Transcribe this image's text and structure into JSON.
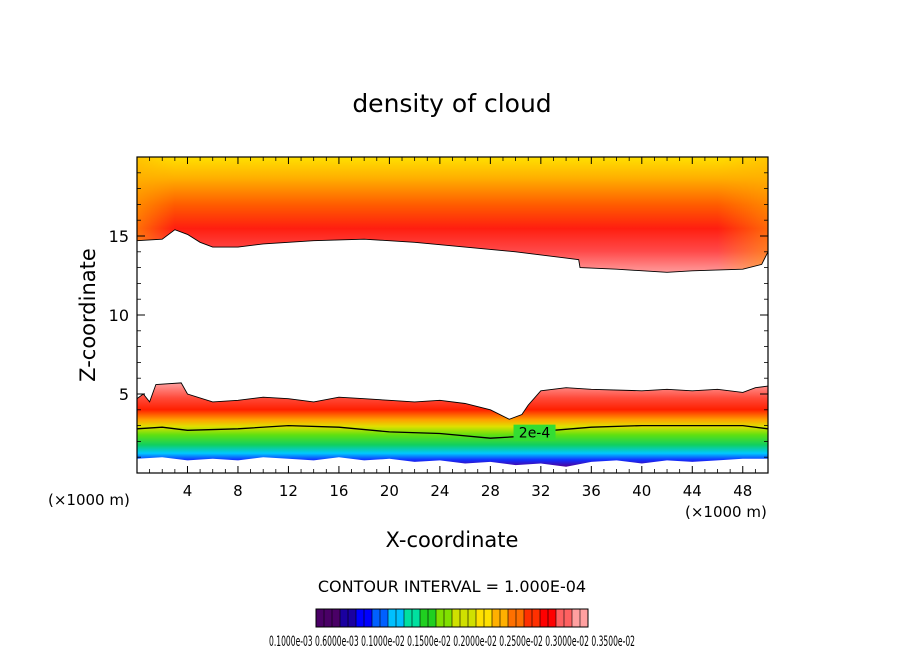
{
  "chart_data": {
    "type": "heatmap",
    "title": "density of cloud",
    "xlabel": "X-coordinate",
    "ylabel": "Z-coordinate",
    "x_unit": "(×1000 m)",
    "x_unit_right": "(×1000 m)",
    "xlim": [
      0,
      50
    ],
    "ylim": [
      0,
      20
    ],
    "x_ticks": [
      4,
      8,
      12,
      16,
      20,
      24,
      28,
      32,
      36,
      40,
      44,
      48
    ],
    "x_tick_labels": [
      "4",
      "8",
      "12",
      "16",
      "20",
      "24",
      "28",
      "32",
      "36",
      "40",
      "44",
      "48"
    ],
    "y_ticks": [
      5,
      10,
      15
    ],
    "y_tick_labels": [
      "5",
      "10",
      "15"
    ],
    "contour_interval_text": "CONTOUR INTERVAL = 1.000E-04",
    "contour_label": "2e-4",
    "contour_label_at": {
      "x": 31.5,
      "z": 2.3
    },
    "colorbar": {
      "min": 0.0001,
      "max": 0.0035,
      "labels_text": "0.1000e-03   0.6000e-03   0.1000e-02   0.1500e-02   0.2000e-02   0.2500e-02   0.3000e-02   0.3500e-02",
      "colors": [
        "#4a0066",
        "#1a00a0",
        "#0000ff",
        "#0060ff",
        "#00c0ff",
        "#00e0a0",
        "#20d020",
        "#80e000",
        "#d0e000",
        "#ffe000",
        "#ffb000",
        "#ff7000",
        "#ff3000",
        "#ff0000",
        "#ff6060",
        "#ffa0a0"
      ]
    },
    "upper_cloud_base": [
      [
        0,
        14.7
      ],
      [
        2,
        14.8
      ],
      [
        3,
        15.4
      ],
      [
        4,
        15.1
      ],
      [
        5,
        14.6
      ],
      [
        6,
        14.3
      ],
      [
        8,
        14.3
      ],
      [
        10,
        14.5
      ],
      [
        14,
        14.7
      ],
      [
        18,
        14.8
      ],
      [
        22,
        14.6
      ],
      [
        26,
        14.3
      ],
      [
        30,
        14.0
      ],
      [
        34,
        13.6
      ],
      [
        35,
        13.5
      ],
      [
        35.1,
        13.0
      ],
      [
        38,
        12.9
      ],
      [
        42,
        12.7
      ],
      [
        44,
        12.8
      ],
      [
        48,
        12.9
      ],
      [
        49.5,
        13.2
      ],
      [
        50,
        14.0
      ]
    ],
    "lower_cloud_top": [
      [
        0,
        4.7
      ],
      [
        0.5,
        5.0
      ],
      [
        1,
        4.5
      ],
      [
        1.5,
        5.6
      ],
      [
        3.5,
        5.7
      ],
      [
        4,
        5.0
      ],
      [
        6,
        4.5
      ],
      [
        8,
        4.6
      ],
      [
        10,
        4.8
      ],
      [
        12,
        4.7
      ],
      [
        14,
        4.5
      ],
      [
        16,
        4.8
      ],
      [
        18,
        4.7
      ],
      [
        20,
        4.6
      ],
      [
        22,
        4.5
      ],
      [
        24,
        4.6
      ],
      [
        26,
        4.4
      ],
      [
        28,
        4.0
      ],
      [
        29.5,
        3.4
      ],
      [
        30.5,
        3.7
      ],
      [
        31,
        4.3
      ],
      [
        32,
        5.2
      ],
      [
        34,
        5.4
      ],
      [
        36,
        5.3
      ],
      [
        40,
        5.2
      ],
      [
        42,
        5.3
      ],
      [
        44,
        5.2
      ],
      [
        46,
        5.3
      ],
      [
        48,
        5.1
      ],
      [
        49,
        5.4
      ],
      [
        50,
        5.5
      ]
    ],
    "lower_cloud_base": [
      [
        0,
        0.9
      ],
      [
        2,
        1.0
      ],
      [
        4,
        0.8
      ],
      [
        6,
        0.9
      ],
      [
        8,
        0.8
      ],
      [
        10,
        1.0
      ],
      [
        12,
        0.9
      ],
      [
        14,
        0.8
      ],
      [
        16,
        1.0
      ],
      [
        18,
        0.8
      ],
      [
        20,
        0.9
      ],
      [
        22,
        0.7
      ],
      [
        24,
        0.8
      ],
      [
        26,
        0.6
      ],
      [
        28,
        0.7
      ],
      [
        30,
        0.5
      ],
      [
        32,
        0.6
      ],
      [
        34,
        0.4
      ],
      [
        36,
        0.7
      ],
      [
        38,
        0.8
      ],
      [
        40,
        0.6
      ],
      [
        42,
        0.8
      ],
      [
        44,
        0.7
      ],
      [
        46,
        0.8
      ],
      [
        48,
        0.9
      ],
      [
        50,
        0.9
      ]
    ],
    "contour_2e4": [
      [
        0,
        2.8
      ],
      [
        2,
        2.9
      ],
      [
        4,
        2.7
      ],
      [
        8,
        2.8
      ],
      [
        12,
        3.0
      ],
      [
        16,
        2.9
      ],
      [
        20,
        2.6
      ],
      [
        24,
        2.5
      ],
      [
        28,
        2.2
      ],
      [
        30,
        2.3
      ],
      [
        33,
        2.7
      ],
      [
        36,
        2.9
      ],
      [
        40,
        3.0
      ],
      [
        44,
        3.0
      ],
      [
        48,
        3.0
      ],
      [
        50,
        2.8
      ]
    ]
  }
}
